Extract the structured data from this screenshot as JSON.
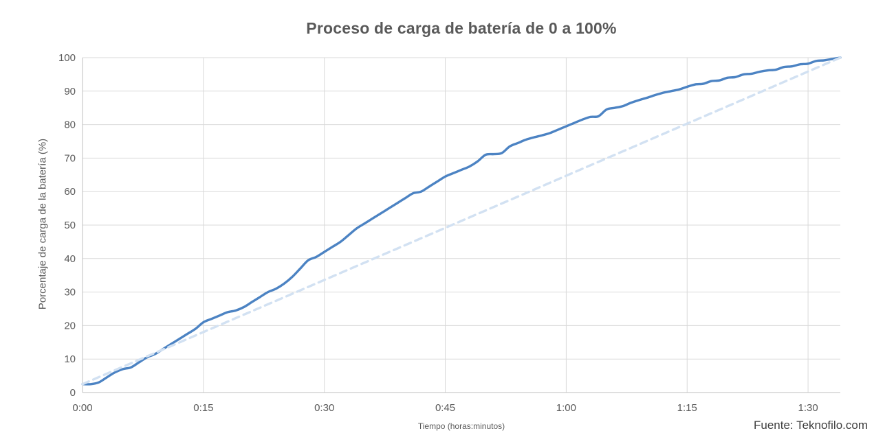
{
  "title": "Proceso de carga de batería de 0 a 100%",
  "source_note": "Fuente: Teknofilo.com",
  "colors": {
    "background": "#ffffff",
    "title_text": "#595959",
    "tick_text": "#595959",
    "axis_line": "#bfbfbf",
    "gridline": "#d9d9d9",
    "series_solid": "#4c83c3",
    "series_dashed": "#d2e1f2",
    "source_text": "#3d3d3d"
  },
  "chart_data": {
    "type": "line",
    "title": "Proceso de carga de batería de 0 a 100%",
    "xlabel": "Tiempo (horas:minutos)",
    "ylabel": "Porcentaje de carga de la batería (%)",
    "x_unit": "minutes",
    "xlim": [
      0,
      94
    ],
    "ylim": [
      0,
      100
    ],
    "grid": true,
    "legend": "none",
    "x_tick_minutes": [
      0,
      15,
      30,
      45,
      60,
      75,
      90
    ],
    "x_tick_labels": [
      "0:00",
      "0:15",
      "0:30",
      "0:45",
      "1:00",
      "1:15",
      "1:30"
    ],
    "y_ticks": [
      0,
      10,
      20,
      30,
      40,
      50,
      60,
      70,
      80,
      90,
      100
    ],
    "series": [
      {
        "name": "carga-bateria",
        "style": "solid",
        "color": "#4c83c3",
        "width": 3.4,
        "smooth": true,
        "points": [
          [
            0,
            2.5
          ],
          [
            1,
            2.5
          ],
          [
            2,
            3
          ],
          [
            3,
            4.5
          ],
          [
            4,
            6
          ],
          [
            5,
            7
          ],
          [
            6,
            7.5
          ],
          [
            7,
            9
          ],
          [
            8,
            10.5
          ],
          [
            9,
            11.5
          ],
          [
            10,
            13
          ],
          [
            11,
            14.5
          ],
          [
            12,
            16
          ],
          [
            13,
            17.5
          ],
          [
            14,
            19
          ],
          [
            15,
            21
          ],
          [
            16,
            22
          ],
          [
            17,
            23
          ],
          [
            18,
            24
          ],
          [
            19,
            24.5
          ],
          [
            20,
            25.5
          ],
          [
            21,
            27
          ],
          [
            22,
            28.5
          ],
          [
            23,
            30
          ],
          [
            24,
            31
          ],
          [
            25,
            32.5
          ],
          [
            26,
            34.5
          ],
          [
            27,
            37
          ],
          [
            28,
            39.5
          ],
          [
            29,
            40.5
          ],
          [
            30,
            42
          ],
          [
            31,
            43.5
          ],
          [
            32,
            45
          ],
          [
            33,
            47
          ],
          [
            34,
            49
          ],
          [
            35,
            50.5
          ],
          [
            36,
            52
          ],
          [
            37,
            53.5
          ],
          [
            38,
            55
          ],
          [
            39,
            56.5
          ],
          [
            40,
            58
          ],
          [
            41,
            59.5
          ],
          [
            42,
            60
          ],
          [
            43,
            61.5
          ],
          [
            44,
            63
          ],
          [
            45,
            64.5
          ],
          [
            46,
            65.5
          ],
          [
            47,
            66.5
          ],
          [
            48,
            67.5
          ],
          [
            49,
            69
          ],
          [
            50,
            71
          ],
          [
            51,
            71.2
          ],
          [
            52,
            71.5
          ],
          [
            53,
            73.5
          ],
          [
            54,
            74.5
          ],
          [
            55,
            75.5
          ],
          [
            56,
            76.2
          ],
          [
            57,
            76.8
          ],
          [
            58,
            77.5
          ],
          [
            59,
            78.5
          ],
          [
            60,
            79.5
          ],
          [
            61,
            80.5
          ],
          [
            62,
            81.5
          ],
          [
            63,
            82.3
          ],
          [
            64,
            82.5
          ],
          [
            65,
            84.5
          ],
          [
            66,
            85
          ],
          [
            67,
            85.5
          ],
          [
            68,
            86.5
          ],
          [
            69,
            87.3
          ],
          [
            70,
            88
          ],
          [
            71,
            88.8
          ],
          [
            72,
            89.5
          ],
          [
            73,
            90
          ],
          [
            74,
            90.5
          ],
          [
            75,
            91.3
          ],
          [
            76,
            92
          ],
          [
            77,
            92.2
          ],
          [
            78,
            93
          ],
          [
            79,
            93.2
          ],
          [
            80,
            94
          ],
          [
            81,
            94.2
          ],
          [
            82,
            95
          ],
          [
            83,
            95.2
          ],
          [
            84,
            95.8
          ],
          [
            85,
            96.2
          ],
          [
            86,
            96.4
          ],
          [
            87,
            97.2
          ],
          [
            88,
            97.4
          ],
          [
            89,
            98
          ],
          [
            90,
            98.2
          ],
          [
            91,
            99
          ],
          [
            92,
            99.2
          ],
          [
            93,
            99.6
          ],
          [
            94,
            100
          ]
        ]
      },
      {
        "name": "referencia-lineal",
        "style": "dashed",
        "color": "#d2e1f2",
        "width": 3.4,
        "smooth": false,
        "points": [
          [
            0,
            2.5
          ],
          [
            94,
            100
          ]
        ]
      }
    ]
  }
}
